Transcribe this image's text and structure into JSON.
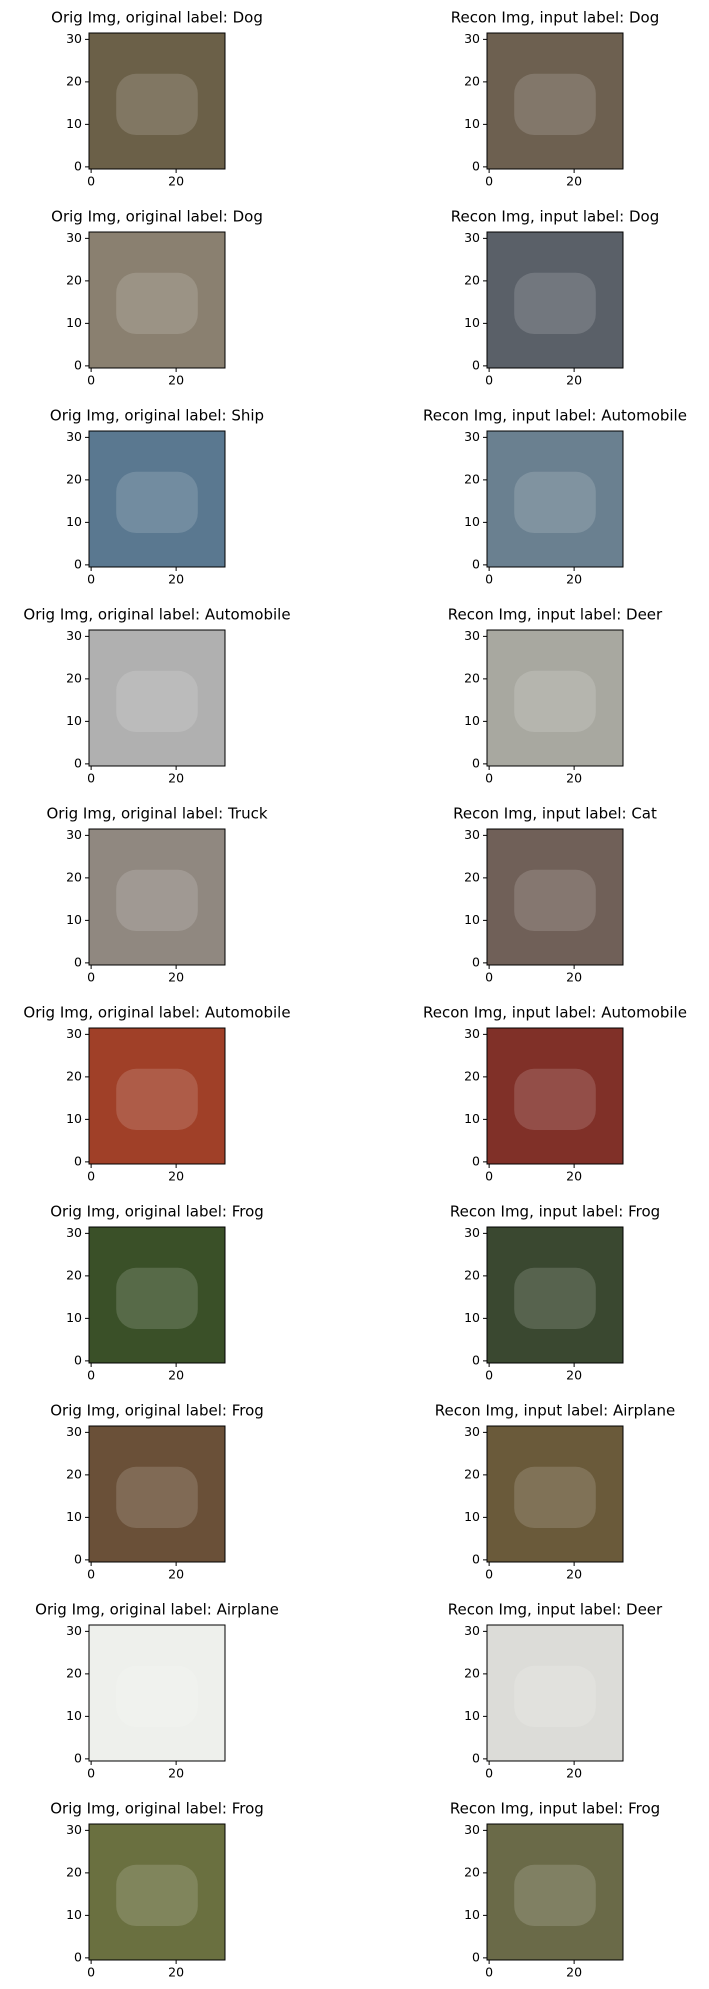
{
  "chart_data": [
    {
      "type": "image",
      "title": "Orig Img, original label: Dog",
      "color": "#6b6048",
      "xlim": [
        -0.5,
        31.5
      ],
      "ylim": [
        31.5,
        -0.5
      ],
      "xticks": [
        0,
        20
      ],
      "yticks": [
        0,
        10,
        20,
        30
      ]
    },
    {
      "type": "image",
      "title": "Recon Img, input label: Dog",
      "color": "#6d6050",
      "xlim": [
        -0.5,
        31.5
      ],
      "ylim": [
        31.5,
        -0.5
      ],
      "xticks": [
        0,
        20
      ],
      "yticks": [
        0,
        10,
        20,
        30
      ]
    },
    {
      "type": "image",
      "title": "Orig Img, original label: Dog",
      "color": "#8a8070",
      "xlim": [
        -0.5,
        31.5
      ],
      "ylim": [
        31.5,
        -0.5
      ],
      "xticks": [
        0,
        20
      ],
      "yticks": [
        0,
        10,
        20,
        30
      ]
    },
    {
      "type": "image",
      "title": "Recon Img, input label: Dog",
      "color": "#5a6068",
      "xlim": [
        -0.5,
        31.5
      ],
      "ylim": [
        31.5,
        -0.5
      ],
      "xticks": [
        0,
        20
      ],
      "yticks": [
        0,
        10,
        20,
        30
      ]
    },
    {
      "type": "image",
      "title": "Orig Img, original label: Ship",
      "color": "#5a7890",
      "xlim": [
        -0.5,
        31.5
      ],
      "ylim": [
        31.5,
        -0.5
      ],
      "xticks": [
        0,
        20
      ],
      "yticks": [
        0,
        10,
        20,
        30
      ]
    },
    {
      "type": "image",
      "title": "Recon Img, input label: Automobile",
      "color": "#6a8090",
      "xlim": [
        -0.5,
        31.5
      ],
      "ylim": [
        31.5,
        -0.5
      ],
      "xticks": [
        0,
        20
      ],
      "yticks": [
        0,
        10,
        20,
        30
      ]
    },
    {
      "type": "image",
      "title": "Orig Img, original label: Automobile",
      "color": "#b0b0b0",
      "xlim": [
        -0.5,
        31.5
      ],
      "ylim": [
        31.5,
        -0.5
      ],
      "xticks": [
        0,
        20
      ],
      "yticks": [
        0,
        10,
        20,
        30
      ]
    },
    {
      "type": "image",
      "title": "Recon Img, input label: Deer",
      "color": "#a8a8a0",
      "xlim": [
        -0.5,
        31.5
      ],
      "ylim": [
        31.5,
        -0.5
      ],
      "xticks": [
        0,
        20
      ],
      "yticks": [
        0,
        10,
        20,
        30
      ]
    },
    {
      "type": "image",
      "title": "Orig Img, original label: Truck",
      "color": "#908880",
      "xlim": [
        -0.5,
        31.5
      ],
      "ylim": [
        31.5,
        -0.5
      ],
      "xticks": [
        0,
        20
      ],
      "yticks": [
        0,
        10,
        20,
        30
      ]
    },
    {
      "type": "image",
      "title": "Recon Img, input label: Cat",
      "color": "#706058",
      "xlim": [
        -0.5,
        31.5
      ],
      "ylim": [
        31.5,
        -0.5
      ],
      "xticks": [
        0,
        20
      ],
      "yticks": [
        0,
        10,
        20,
        30
      ]
    },
    {
      "type": "image",
      "title": "Orig Img, original label: Automobile",
      "color": "#a04028",
      "xlim": [
        -0.5,
        31.5
      ],
      "ylim": [
        31.5,
        -0.5
      ],
      "xticks": [
        0,
        20
      ],
      "yticks": [
        0,
        10,
        20,
        30
      ]
    },
    {
      "type": "image",
      "title": "Recon Img, input label: Automobile",
      "color": "#803028",
      "xlim": [
        -0.5,
        31.5
      ],
      "ylim": [
        31.5,
        -0.5
      ],
      "xticks": [
        0,
        20
      ],
      "yticks": [
        0,
        10,
        20,
        30
      ]
    },
    {
      "type": "image",
      "title": "Orig Img, original label: Frog",
      "color": "#3a5028",
      "xlim": [
        -0.5,
        31.5
      ],
      "ylim": [
        31.5,
        -0.5
      ],
      "xticks": [
        0,
        20
      ],
      "yticks": [
        0,
        10,
        20,
        30
      ]
    },
    {
      "type": "image",
      "title": "Recon Img, input label: Frog",
      "color": "#3a4830",
      "xlim": [
        -0.5,
        31.5
      ],
      "ylim": [
        31.5,
        -0.5
      ],
      "xticks": [
        0,
        20
      ],
      "yticks": [
        0,
        10,
        20,
        30
      ]
    },
    {
      "type": "image",
      "title": "Orig Img, original label: Frog",
      "color": "#6a5038",
      "xlim": [
        -0.5,
        31.5
      ],
      "ylim": [
        31.5,
        -0.5
      ],
      "xticks": [
        0,
        20
      ],
      "yticks": [
        0,
        10,
        20,
        30
      ]
    },
    {
      "type": "image",
      "title": "Recon Img, input label: Airplane",
      "color": "#6a5a3a",
      "xlim": [
        -0.5,
        31.5
      ],
      "ylim": [
        31.5,
        -0.5
      ],
      "xticks": [
        0,
        20
      ],
      "yticks": [
        0,
        10,
        20,
        30
      ]
    },
    {
      "type": "image",
      "title": "Orig Img, original label: Airplane",
      "color": "#eef0ec",
      "xlim": [
        -0.5,
        31.5
      ],
      "ylim": [
        31.5,
        -0.5
      ],
      "xticks": [
        0,
        20
      ],
      "yticks": [
        0,
        10,
        20,
        30
      ]
    },
    {
      "type": "image",
      "title": "Recon Img, input label: Deer",
      "color": "#dcdcd8",
      "xlim": [
        -0.5,
        31.5
      ],
      "ylim": [
        31.5,
        -0.5
      ],
      "xticks": [
        0,
        20
      ],
      "yticks": [
        0,
        10,
        20,
        30
      ]
    },
    {
      "type": "image",
      "title": "Orig Img, original label: Frog",
      "color": "#6a7040",
      "xlim": [
        -0.5,
        31.5
      ],
      "ylim": [
        31.5,
        -0.5
      ],
      "xticks": [
        0,
        20
      ],
      "yticks": [
        0,
        10,
        20,
        30
      ]
    },
    {
      "type": "image",
      "title": "Recon Img, input label: Frog",
      "color": "#6a6a48",
      "xlim": [
        -0.5,
        31.5
      ],
      "ylim": [
        31.5,
        -0.5
      ],
      "xticks": [
        0,
        20
      ],
      "yticks": [
        0,
        10,
        20,
        30
      ]
    }
  ]
}
